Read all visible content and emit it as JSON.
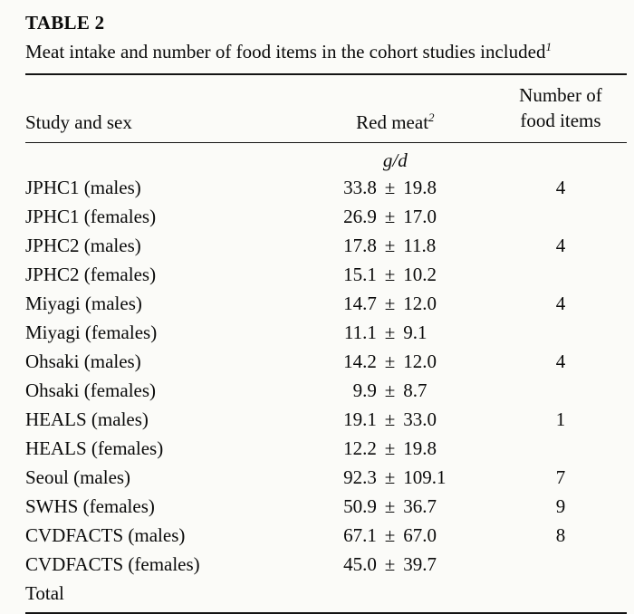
{
  "table": {
    "label": "TABLE 2",
    "caption": "Meat intake and number of food items in the cohort studies included",
    "caption_superscript": "1",
    "columns": {
      "study": "Study and sex",
      "red_meat": "Red meat",
      "red_meat_superscript": "2",
      "food_items_line1": "Number of",
      "food_items_line2": "food items"
    },
    "unit": "g/d",
    "rows": [
      {
        "study": "JPHC1 (males)",
        "mean": "33.8",
        "pm": "±",
        "sd": "19.8",
        "items": "4"
      },
      {
        "study": "JPHC1 (females)",
        "mean": "26.9",
        "pm": "±",
        "sd": "17.0",
        "items": ""
      },
      {
        "study": "JPHC2 (males)",
        "mean": "17.8",
        "pm": "±",
        "sd": "11.8",
        "items": "4"
      },
      {
        "study": "JPHC2 (females)",
        "mean": "15.1",
        "pm": "±",
        "sd": "10.2",
        "items": ""
      },
      {
        "study": "Miyagi (males)",
        "mean": "14.7",
        "pm": "±",
        "sd": "12.0",
        "items": "4"
      },
      {
        "study": "Miyagi (females)",
        "mean": "11.1",
        "pm": "±",
        "sd": "9.1",
        "items": ""
      },
      {
        "study": "Ohsaki (males)",
        "mean": "14.2",
        "pm": "±",
        "sd": "12.0",
        "items": "4"
      },
      {
        "study": "Ohsaki (females)",
        "mean": "9.9",
        "pm": "±",
        "sd": "8.7",
        "items": ""
      },
      {
        "study": "HEALS (males)",
        "mean": "19.1",
        "pm": "±",
        "sd": "33.0",
        "items": "1"
      },
      {
        "study": "HEALS (females)",
        "mean": "12.2",
        "pm": "±",
        "sd": "19.8",
        "items": ""
      },
      {
        "study": "Seoul (males)",
        "mean": "92.3",
        "pm": "±",
        "sd": "109.1",
        "items": "7"
      },
      {
        "study": "SWHS (females)",
        "mean": "50.9",
        "pm": "±",
        "sd": "36.7",
        "items": "9"
      },
      {
        "study": "CVDFACTS (males)",
        "mean": "67.1",
        "pm": "±",
        "sd": "67.0",
        "items": "8"
      },
      {
        "study": "CVDFACTS (females)",
        "mean": "45.0",
        "pm": "±",
        "sd": "39.7",
        "items": ""
      },
      {
        "study": "Total",
        "mean": "",
        "pm": "",
        "sd": "",
        "items": ""
      }
    ]
  }
}
